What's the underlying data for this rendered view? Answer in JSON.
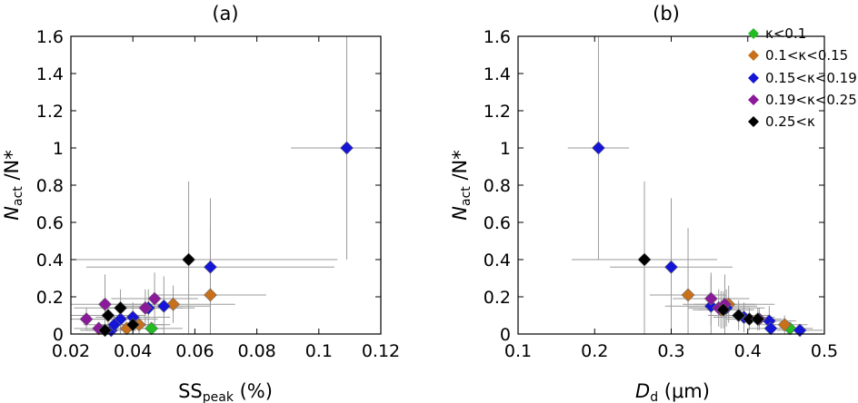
{
  "colors": {
    "k_lt_0_1": "#22bb22",
    "k_0_1_0_15": "#c8701a",
    "k_0_15_0_19": "#1515d8",
    "k_0_19_0_25": "#8b1a9b",
    "k_gt_0_25": "#000000",
    "errorbar": "#9a9a9a"
  },
  "legend": [
    "κ<0.1",
    "0.1<κ<0.15",
    "0.15<κ<0.19",
    "0.19<κ<0.25",
    "0.25<κ"
  ],
  "chart_data": [
    {
      "type": "scatter",
      "title": "(a)",
      "xlabel_main": "SS",
      "xlabel_sub": "peak",
      "xlabel_unit": " (%)",
      "ylabel_main": "N",
      "ylabel_sub": "act",
      "ylabel_rest": " /N*",
      "xlim": [
        0.02,
        0.12
      ],
      "ylim": [
        0,
        1.6
      ],
      "xticks": [
        "0.02",
        "0.04",
        "0.06",
        "0.08",
        "0.1",
        "0.12"
      ],
      "yticks": [
        "0",
        "0.2",
        "0.4",
        "0.6",
        "0.8",
        "1",
        "1.2",
        "1.4",
        "1.6"
      ],
      "series": [
        {
          "name": "κ<0.1",
          "color_key": "k_lt_0_1",
          "points": [
            {
              "x": 0.046,
              "y": 0.03,
              "xerr": 0.01,
              "yerr": 0.03
            }
          ]
        },
        {
          "name": "0.1<κ<0.15",
          "color_key": "k_0_1_0_15",
          "points": [
            {
              "x": 0.053,
              "y": 0.16,
              "xerr": 0.02,
              "yerr": 0.1
            },
            {
              "x": 0.065,
              "y": 0.21,
              "xerr": 0.018,
              "yerr": 0.36
            },
            {
              "x": 0.042,
              "y": 0.05,
              "xerr": 0.01,
              "yerr": 0.05
            },
            {
              "x": 0.038,
              "y": 0.03,
              "xerr": 0.012,
              "yerr": 0.03
            }
          ]
        },
        {
          "name": "0.15<κ<0.19",
          "color_key": "k_0_15_0_19",
          "points": [
            {
              "x": 0.109,
              "y": 1.0,
              "xerr": 0.018,
              "yerr": 0.6
            },
            {
              "x": 0.065,
              "y": 0.36,
              "xerr": 0.04,
              "yerr": 0.37
            },
            {
              "x": 0.05,
              "y": 0.15,
              "xerr": 0.015,
              "yerr": 0.16
            },
            {
              "x": 0.045,
              "y": 0.14,
              "xerr": 0.015,
              "yerr": 0.1
            },
            {
              "x": 0.04,
              "y": 0.09,
              "xerr": 0.012,
              "yerr": 0.08
            },
            {
              "x": 0.036,
              "y": 0.08,
              "xerr": 0.012,
              "yerr": 0.08
            },
            {
              "x": 0.033,
              "y": 0.02,
              "xerr": 0.008,
              "yerr": 0.02
            },
            {
              "x": 0.034,
              "y": 0.05,
              "xerr": 0.01,
              "yerr": 0.05
            }
          ]
        },
        {
          "name": "0.19<κ<0.25",
          "color_key": "k_0_19_0_25",
          "points": [
            {
              "x": 0.025,
              "y": 0.08,
              "xerr": 0.008,
              "yerr": 0.06
            },
            {
              "x": 0.031,
              "y": 0.16,
              "xerr": 0.012,
              "yerr": 0.16
            },
            {
              "x": 0.044,
              "y": 0.14,
              "xerr": 0.012,
              "yerr": 0.1
            },
            {
              "x": 0.047,
              "y": 0.19,
              "xerr": 0.014,
              "yerr": 0.14
            },
            {
              "x": 0.029,
              "y": 0.03,
              "xerr": 0.008,
              "yerr": 0.03
            }
          ]
        },
        {
          "name": "0.25<κ",
          "color_key": "k_gt_0_25",
          "points": [
            {
              "x": 0.058,
              "y": 0.4,
              "xerr": 0.048,
              "yerr": 0.42
            },
            {
              "x": 0.036,
              "y": 0.14,
              "xerr": 0.015,
              "yerr": 0.1
            },
            {
              "x": 0.032,
              "y": 0.1,
              "xerr": 0.012,
              "yerr": 0.08
            },
            {
              "x": 0.031,
              "y": 0.02,
              "xerr": 0.008,
              "yerr": 0.02
            },
            {
              "x": 0.04,
              "y": 0.05,
              "xerr": 0.01,
              "yerr": 0.05
            }
          ]
        }
      ]
    },
    {
      "type": "scatter",
      "title": "(b)",
      "xlabel_main": "D",
      "xlabel_sub": "d",
      "xlabel_unit": " (μm)",
      "ylabel_main": "N",
      "ylabel_sub": "act",
      "ylabel_rest": " /N*",
      "xlim": [
        0.1,
        0.5
      ],
      "ylim": [
        0,
        1.6
      ],
      "xticks": [
        "0.1",
        "0.2",
        "0.3",
        "0.4",
        "0.5"
      ],
      "yticks": [
        "0",
        "0.2",
        "0.4",
        "0.6",
        "0.8",
        "1",
        "1.2",
        "1.4",
        "1.6"
      ],
      "series": [
        {
          "name": "κ<0.1",
          "color_key": "k_lt_0_1",
          "points": [
            {
              "x": 0.455,
              "y": 0.03,
              "xerr": 0.03,
              "yerr": 0.03
            }
          ]
        },
        {
          "name": "0.1<κ<0.15",
          "color_key": "k_0_1_0_15",
          "points": [
            {
              "x": 0.322,
              "y": 0.21,
              "xerr": 0.05,
              "yerr": 0.36
            },
            {
              "x": 0.375,
              "y": 0.16,
              "xerr": 0.06,
              "yerr": 0.1
            },
            {
              "x": 0.448,
              "y": 0.05,
              "xerr": 0.03,
              "yerr": 0.05
            },
            {
              "x": 0.365,
              "y": 0.13,
              "xerr": 0.03,
              "yerr": 0.1
            }
          ]
        },
        {
          "name": "0.15<κ<0.19",
          "color_key": "k_0_15_0_19",
          "points": [
            {
              "x": 0.205,
              "y": 1.0,
              "xerr": 0.04,
              "yerr": 0.6
            },
            {
              "x": 0.3,
              "y": 0.36,
              "xerr": 0.08,
              "yerr": 0.37
            },
            {
              "x": 0.352,
              "y": 0.15,
              "xerr": 0.06,
              "yerr": 0.16
            },
            {
              "x": 0.372,
              "y": 0.14,
              "xerr": 0.05,
              "yerr": 0.1
            },
            {
              "x": 0.395,
              "y": 0.09,
              "xerr": 0.04,
              "yerr": 0.08
            },
            {
              "x": 0.428,
              "y": 0.07,
              "xerr": 0.035,
              "yerr": 0.08
            },
            {
              "x": 0.468,
              "y": 0.02,
              "xerr": 0.03,
              "yerr": 0.02
            },
            {
              "x": 0.43,
              "y": 0.03,
              "xerr": 0.03,
              "yerr": 0.03
            }
          ]
        },
        {
          "name": "0.19<κ<0.25",
          "color_key": "k_0_19_0_25",
          "points": [
            {
              "x": 0.352,
              "y": 0.19,
              "xerr": 0.05,
              "yerr": 0.14
            },
            {
              "x": 0.362,
              "y": 0.14,
              "xerr": 0.04,
              "yerr": 0.1
            },
            {
              "x": 0.37,
              "y": 0.16,
              "xerr": 0.04,
              "yerr": 0.16
            },
            {
              "x": 0.415,
              "y": 0.08,
              "xerr": 0.03,
              "yerr": 0.06
            }
          ]
        },
        {
          "name": "0.25<κ",
          "color_key": "k_gt_0_25",
          "points": [
            {
              "x": 0.265,
              "y": 0.4,
              "xerr": 0.095,
              "yerr": 0.42
            },
            {
              "x": 0.368,
              "y": 0.13,
              "xerr": 0.04,
              "yerr": 0.1
            },
            {
              "x": 0.388,
              "y": 0.1,
              "xerr": 0.04,
              "yerr": 0.08
            },
            {
              "x": 0.402,
              "y": 0.08,
              "xerr": 0.03,
              "yerr": 0.06
            },
            {
              "x": 0.413,
              "y": 0.08,
              "xerr": 0.03,
              "yerr": 0.06
            }
          ]
        }
      ]
    }
  ]
}
